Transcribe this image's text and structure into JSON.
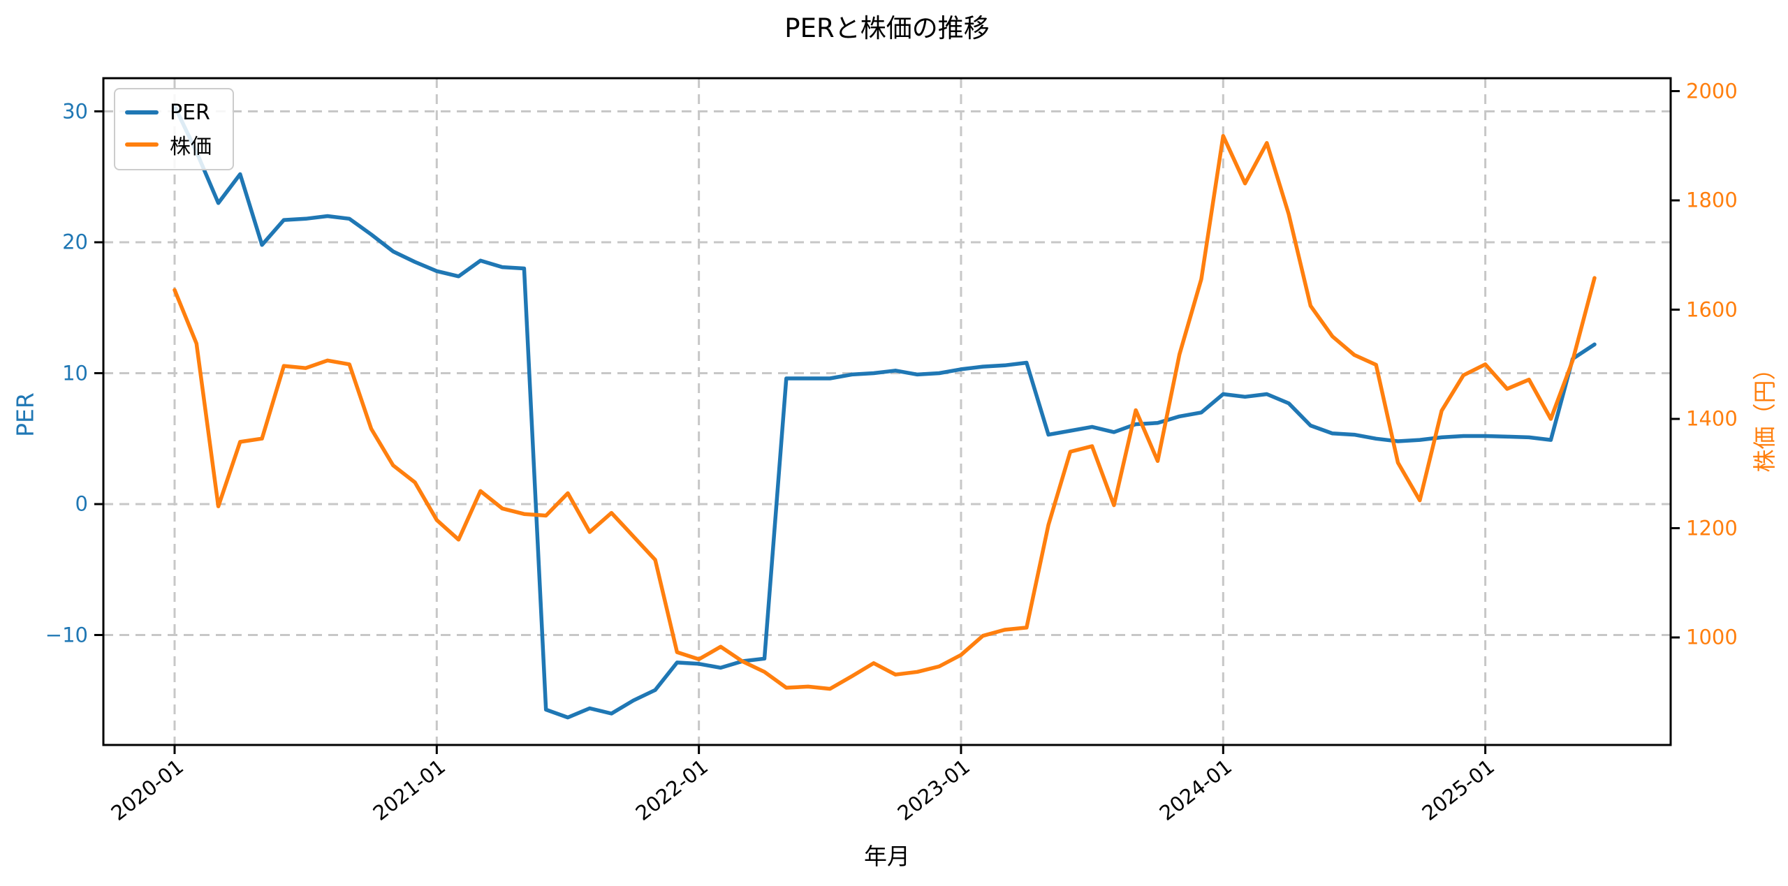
{
  "title": "PERと株価の推移",
  "xlabel": "年月",
  "ylabel_left": "PER",
  "ylabel_right": "株価（円）",
  "legend": {
    "per": "PER",
    "kabuka": "株価"
  },
  "colors": {
    "per": "#1f77b4",
    "kabuka": "#ff7f0e",
    "grid": "#c7c7c7",
    "frame": "#000000",
    "tick_text_left": "#1f77b4",
    "tick_text_right": "#ff7f0e",
    "tick_text_x": "#000000"
  },
  "axes": {
    "x_tick_labels": [
      "2020-01",
      "2021-01",
      "2022-01",
      "2023-01",
      "2024-01",
      "2025-01"
    ],
    "y_left_tick_labels": [
      "30",
      "20",
      "10",
      "0",
      "−10"
    ],
    "y_left_tick_values": [
      30,
      20,
      10,
      0,
      -10
    ],
    "y_right_tick_labels": [
      "2000",
      "1800",
      "1600",
      "1400",
      "1200",
      "1000"
    ],
    "y_right_tick_values": [
      2000,
      1800,
      1600,
      1400,
      1200,
      1000
    ]
  },
  "chart_data": {
    "type": "line",
    "title": "PERと株価の推移",
    "xlabel": "年月",
    "ylabel_left": "PER",
    "ylabel_right": "株価（円）",
    "grid": true,
    "legend_position": "upper left",
    "ylim_left": [
      -18.9,
      32.5
    ],
    "ylim_right": [
      785,
      2023
    ],
    "x": [
      "2020-01",
      "2020-02",
      "2020-03",
      "2020-04",
      "2020-05",
      "2020-06",
      "2020-07",
      "2020-08",
      "2020-09",
      "2020-10",
      "2020-11",
      "2020-12",
      "2021-01",
      "2021-02",
      "2021-03",
      "2021-04",
      "2021-05",
      "2021-06",
      "2021-07",
      "2021-08",
      "2021-09",
      "2021-10",
      "2021-11",
      "2021-12",
      "2022-01",
      "2022-02",
      "2022-03",
      "2022-04",
      "2022-05",
      "2022-06",
      "2022-07",
      "2022-08",
      "2022-09",
      "2022-10",
      "2022-11",
      "2022-12",
      "2023-01",
      "2023-02",
      "2023-03",
      "2023-04",
      "2023-05",
      "2023-06",
      "2023-07",
      "2023-08",
      "2023-09",
      "2023-10",
      "2023-11",
      "2023-12",
      "2024-01",
      "2024-02",
      "2024-03",
      "2024-04",
      "2024-05",
      "2024-06",
      "2024-07",
      "2024-08",
      "2024-09",
      "2024-10",
      "2024-11",
      "2024-12",
      "2025-01",
      "2025-02",
      "2025-03",
      "2025-04",
      "2025-05",
      "2025-06"
    ],
    "series": [
      {
        "name": "PER",
        "axis": "left",
        "color": "#1f77b4",
        "values": [
          30.4,
          26.9,
          23.0,
          25.2,
          19.8,
          21.7,
          21.8,
          22.0,
          21.8,
          20.6,
          19.3,
          18.5,
          17.8,
          17.4,
          18.6,
          18.1,
          18.0,
          -15.7,
          -16.3,
          -15.6,
          -16.0,
          -15.0,
          -14.2,
          -12.1,
          -12.2,
          -12.5,
          -12.0,
          -11.8,
          9.6,
          9.6,
          9.6,
          9.9,
          10.0,
          10.2,
          9.9,
          10.0,
          10.3,
          10.5,
          10.6,
          10.8,
          5.3,
          5.6,
          5.9,
          5.5,
          6.1,
          6.2,
          6.7,
          7.0,
          8.4,
          8.2,
          8.4,
          7.7,
          6.0,
          5.4,
          5.3,
          5.0,
          4.8,
          4.9,
          5.1,
          5.2,
          5.2,
          5.15,
          5.1,
          4.9,
          11.1,
          12.2
        ]
      },
      {
        "name": "株価",
        "axis": "right",
        "color": "#ff7f0e",
        "values": [
          1636,
          1538,
          1240,
          1358,
          1364,
          1497,
          1493,
          1507,
          1500,
          1382,
          1315,
          1284,
          1215,
          1179,
          1268,
          1236,
          1226,
          1223,
          1264,
          1193,
          1228,
          1185,
          1142,
          973,
          960,
          983,
          956,
          937,
          908,
          910,
          906,
          929,
          953,
          932,
          937,
          947,
          968,
          1003,
          1014,
          1018,
          1206,
          1340,
          1350,
          1242,
          1416,
          1323,
          1518,
          1656,
          1918,
          1831,
          1905,
          1775,
          1607,
          1551,
          1517,
          1499,
          1320,
          1251,
          1415,
          1480,
          1500,
          1455,
          1472,
          1400,
          1507,
          1658
        ]
      }
    ]
  }
}
